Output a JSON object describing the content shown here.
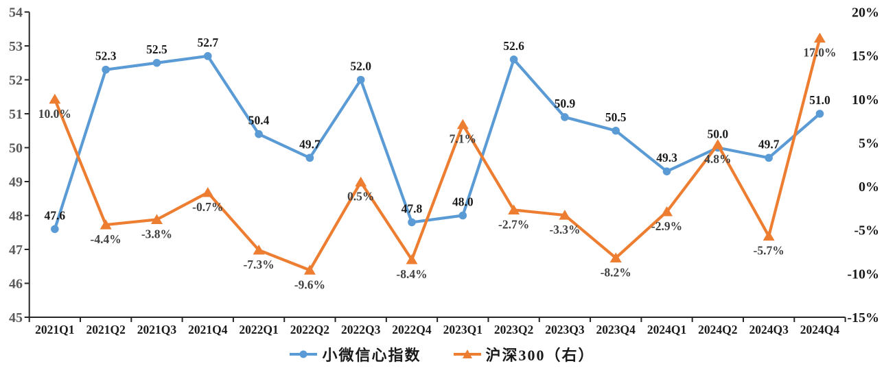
{
  "chart_data": {
    "type": "line",
    "title": "",
    "xlabel": "",
    "ylabel_left": "",
    "ylabel_right": "",
    "grid": false,
    "legend_position": "bottom",
    "categories": [
      "2021Q1",
      "2021Q2",
      "2021Q3",
      "2021Q4",
      "2022Q1",
      "2022Q2",
      "2022Q3",
      "2022Q4",
      "2023Q1",
      "2023Q2",
      "2023Q3",
      "2023Q4",
      "2024Q1",
      "2024Q2",
      "2024Q3",
      "2024Q4"
    ],
    "series": [
      {
        "name": "小微信心指数",
        "axis": "left",
        "color": "#5B9BD5",
        "marker": "circle",
        "label_color": "#1a1a1a",
        "label_position": "above",
        "values": [
          47.6,
          52.3,
          52.5,
          52.7,
          50.4,
          49.7,
          52.0,
          47.8,
          48.0,
          52.6,
          50.9,
          50.5,
          49.3,
          50.0,
          49.7,
          51.0
        ],
        "labels": [
          "47.6",
          "52.3",
          "52.5",
          "52.7",
          "50.4",
          "49.7",
          "52.0",
          "47.8",
          "48.0",
          "52.6",
          "50.9",
          "50.5",
          "49.3",
          "50.0",
          "49.7",
          "51.0"
        ]
      },
      {
        "name": "沪深300（右）",
        "axis": "right",
        "color": "#ED7D31",
        "marker": "triangle",
        "label_color": "#404040",
        "label_position": "below",
        "values": [
          10.0,
          -4.4,
          -3.8,
          -0.7,
          -7.3,
          -9.6,
          0.5,
          -8.4,
          7.1,
          -2.7,
          -3.3,
          -8.2,
          -2.9,
          4.8,
          -5.7,
          17.0
        ],
        "labels": [
          "10.0%",
          "-4.4%",
          "-3.8%",
          "-0.7%",
          "-7.3%",
          "-9.6%",
          "0.5%",
          "-8.4%",
          "7.1%",
          "-2.7%",
          "-3.3%",
          "-8.2%",
          "-2.9%",
          "4.8%",
          "-5.7%",
          "17.0%"
        ]
      }
    ],
    "left_axis": {
      "min": 45,
      "max": 54,
      "step": 1,
      "tick_labels": [
        "45",
        "46",
        "47",
        "48",
        "49",
        "50",
        "51",
        "52",
        "53",
        "54"
      ]
    },
    "right_axis": {
      "min": -15,
      "max": 20,
      "step": 5,
      "tick_labels": [
        "-15%",
        "-10%",
        "-5%",
        "0%",
        "5%",
        "10%",
        "15%",
        "20%"
      ]
    }
  },
  "colors": {
    "axis_line": "#262626",
    "left_tick_label": "#595959",
    "right_tick_label": "#1a1a1a",
    "x_tick_label": "#1a1a1a",
    "background": "#ffffff"
  }
}
